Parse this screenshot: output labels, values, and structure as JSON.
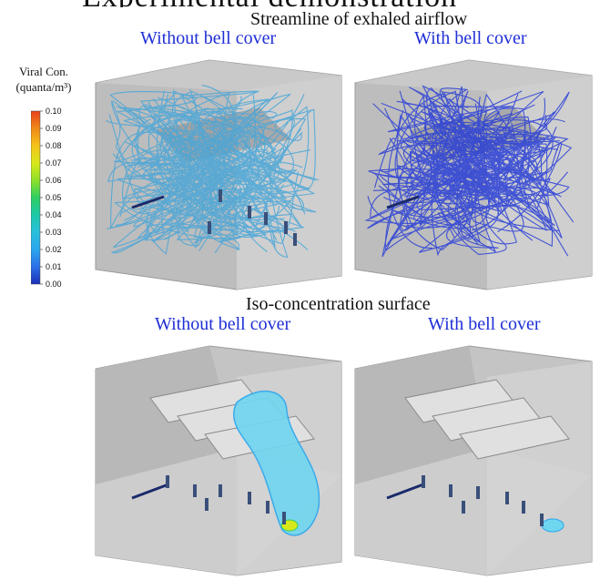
{
  "header": {
    "partial_title": "Experimental demonstration"
  },
  "section_top": {
    "title": "Streamline of exhaled airflow",
    "left_label": "Without bell cover",
    "right_label": "With bell cover"
  },
  "section_bottom": {
    "title": "Iso-concentration surface",
    "left_label": "Without bell cover",
    "right_label": "With bell cover"
  },
  "legend": {
    "title_line1": "Viral Con.",
    "title_line2": "(quanta/m³)",
    "ticks": [
      "0.10",
      "0.09",
      "0.08",
      "0.07",
      "0.06",
      "0.05",
      "0.04",
      "0.03",
      "0.02",
      "0.01",
      "0.00"
    ],
    "colors": [
      "#e8401c",
      "#f08a1a",
      "#f5c31a",
      "#d9e81a",
      "#8fe02a",
      "#2fcf62",
      "#1ec9a8",
      "#29c0dc",
      "#2aa6ee",
      "#2b6fe8",
      "#1a2fb8"
    ]
  },
  "colors": {
    "label_blue": "#1f2fd6",
    "room_wall": "#b9b9b9",
    "room_floor": "#c8c8c8",
    "streamline_light": "#4aa6d8",
    "streamline_dark": "#2a3fd6",
    "plume": "#6fd6f0"
  }
}
